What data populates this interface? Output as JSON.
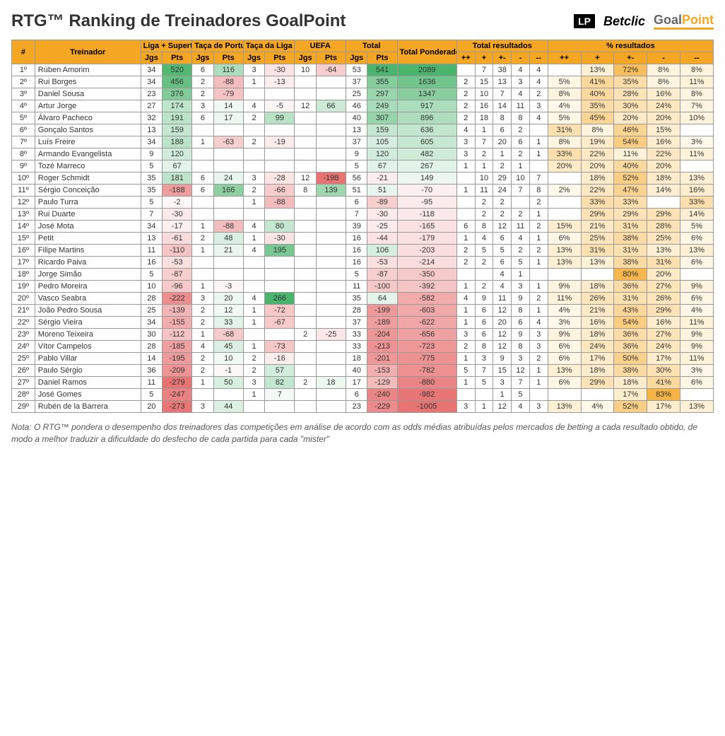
{
  "title": "RTG™ Ranking de Treinadores GoalPoint",
  "logos": {
    "lp": "LP",
    "betclic": "Betclic",
    "goal": "Goal",
    "point": "Point"
  },
  "headers": {
    "rank": "#",
    "coach": "Treinador",
    "liga": "Liga + Supertaça",
    "taca_p": "Taça de Portugal",
    "taca_l": "Taça da Liga",
    "uefa": "UEFA",
    "total": "Total",
    "rtg": "Total Ponderado RTG",
    "total_res": "Total resultados",
    "pct_res": "% resultados",
    "jgs": "Jgs",
    "pts": "Pts",
    "res_labels": [
      "++",
      "+",
      "+-",
      "-",
      "--"
    ]
  },
  "colors": {
    "header_bg": "#f5a623",
    "green_scale": {
      "min": "#f8fcfa",
      "mid": "#d4eee0",
      "high": "#8dd3a8",
      "max": "#4bb56d"
    },
    "red_scale": {
      "min": "#fef8f8",
      "mid": "#f8d6d6",
      "high": "#f0a8a8",
      "max": "#e87373"
    },
    "orange_scale": {
      "min": "#fffbf0",
      "mid": "#fdecc2",
      "high": "#fcdc8a",
      "max": "#f5b942"
    }
  },
  "pts_range": {
    "max": 541,
    "min": -279,
    "rtg_max": 2089,
    "rtg_min": -1005
  },
  "rows": [
    {
      "rank": "1º",
      "name": "Rúben Amorim",
      "liga_j": 34,
      "liga_p": 520,
      "tp_j": 6,
      "tp_p": 116,
      "tl_j": 3,
      "tl_p": -30,
      "uefa_j": 10,
      "uefa_p": -64,
      "tot_j": 53,
      "tot_p": 541,
      "rtg": 2089,
      "r": [
        "",
        7,
        38,
        4,
        4
      ],
      "pct": [
        "",
        "13%",
        "72%",
        "8%",
        "8%"
      ]
    },
    {
      "rank": "2º",
      "name": "Rui Borges",
      "liga_j": 34,
      "liga_p": 456,
      "tp_j": 2,
      "tp_p": -88,
      "tl_j": 1,
      "tl_p": -13,
      "uefa_j": "",
      "uefa_p": "",
      "tot_j": 37,
      "tot_p": 355,
      "rtg": 1636,
      "r": [
        2,
        15,
        13,
        3,
        4
      ],
      "pct": [
        "5%",
        "41%",
        "35%",
        "8%",
        "11%"
      ]
    },
    {
      "rank": "3º",
      "name": "Daniel Sousa",
      "liga_j": 23,
      "liga_p": 376,
      "tp_j": 2,
      "tp_p": -79,
      "tl_j": "",
      "tl_p": "",
      "uefa_j": "",
      "uefa_p": "",
      "tot_j": 25,
      "tot_p": 297,
      "rtg": 1347,
      "r": [
        2,
        10,
        7,
        4,
        2
      ],
      "pct": [
        "8%",
        "40%",
        "28%",
        "16%",
        "8%"
      ]
    },
    {
      "rank": "4º",
      "name": "Artur Jorge",
      "liga_j": 27,
      "liga_p": 174,
      "tp_j": 3,
      "tp_p": 14,
      "tl_j": 4,
      "tl_p": -5,
      "uefa_j": 12,
      "uefa_p": 66,
      "tot_j": 46,
      "tot_p": 249,
      "rtg": 917,
      "r": [
        2,
        16,
        14,
        11,
        3
      ],
      "pct": [
        "4%",
        "35%",
        "30%",
        "24%",
        "7%"
      ]
    },
    {
      "rank": "5º",
      "name": "Álvaro Pacheco",
      "liga_j": 32,
      "liga_p": 191,
      "tp_j": 6,
      "tp_p": 17,
      "tl_j": 2,
      "tl_p": 99,
      "uefa_j": "",
      "uefa_p": "",
      "tot_j": 40,
      "tot_p": 307,
      "rtg": 896,
      "r": [
        2,
        18,
        8,
        8,
        4
      ],
      "pct": [
        "5%",
        "45%",
        "20%",
        "20%",
        "10%"
      ]
    },
    {
      "rank": "6º",
      "name": "Gonçalo Santos",
      "liga_j": 13,
      "liga_p": 159,
      "tp_j": "",
      "tp_p": "",
      "tl_j": "",
      "tl_p": "",
      "uefa_j": "",
      "uefa_p": "",
      "tot_j": 13,
      "tot_p": 159,
      "rtg": 636,
      "r": [
        4,
        1,
        6,
        2,
        ""
      ],
      "pct": [
        "31%",
        "8%",
        "46%",
        "15%",
        ""
      ]
    },
    {
      "rank": "7º",
      "name": "Luís Freire",
      "liga_j": 34,
      "liga_p": 188,
      "tp_j": 1,
      "tp_p": -63,
      "tl_j": 2,
      "tl_p": -19,
      "uefa_j": "",
      "uefa_p": "",
      "tot_j": 37,
      "tot_p": 105,
      "rtg": 605,
      "r": [
        3,
        7,
        20,
        6,
        1
      ],
      "pct": [
        "8%",
        "19%",
        "54%",
        "16%",
        "3%"
      ]
    },
    {
      "rank": "8º",
      "name": "Armando Evangelista",
      "liga_j": 9,
      "liga_p": 120,
      "tp_j": "",
      "tp_p": "",
      "tl_j": "",
      "tl_p": "",
      "uefa_j": "",
      "uefa_p": "",
      "tot_j": 9,
      "tot_p": 120,
      "rtg": 482,
      "r": [
        3,
        2,
        1,
        2,
        1
      ],
      "pct": [
        "33%",
        "22%",
        "11%",
        "22%",
        "11%"
      ]
    },
    {
      "rank": "9º",
      "name": "Tozé Marreco",
      "liga_j": 5,
      "liga_p": 67,
      "tp_j": "",
      "tp_p": "",
      "tl_j": "",
      "tl_p": "",
      "uefa_j": "",
      "uefa_p": "",
      "tot_j": 5,
      "tot_p": 67,
      "rtg": 267,
      "r": [
        1,
        1,
        2,
        1,
        ""
      ],
      "pct": [
        "20%",
        "20%",
        "40%",
        "20%",
        ""
      ]
    },
    {
      "rank": "10º",
      "name": "Roger Schmidt",
      "liga_j": 35,
      "liga_p": 181,
      "tp_j": 6,
      "tp_p": 24,
      "tl_j": 3,
      "tl_p": -28,
      "uefa_j": 12,
      "uefa_p": -198,
      "tot_j": 56,
      "tot_p": -21,
      "rtg": 149,
      "r": [
        "",
        10,
        29,
        10,
        7
      ],
      "pct": [
        "",
        "18%",
        "52%",
        "18%",
        "13%"
      ]
    },
    {
      "rank": "11º",
      "name": "Sérgio Conceição",
      "liga_j": 35,
      "liga_p": -188,
      "tp_j": 6,
      "tp_p": 166,
      "tl_j": 2,
      "tl_p": -66,
      "uefa_j": 8,
      "uefa_p": 139,
      "tot_j": 51,
      "tot_p": 51,
      "rtg": -70,
      "r": [
        1,
        11,
        24,
        7,
        8
      ],
      "pct": [
        "2%",
        "22%",
        "47%",
        "14%",
        "16%"
      ]
    },
    {
      "rank": "12º",
      "name": "Paulo Turra",
      "liga_j": 5,
      "liga_p": -2,
      "tp_j": "",
      "tp_p": "",
      "tl_j": 1,
      "tl_p": -88,
      "uefa_j": "",
      "uefa_p": "",
      "tot_j": 6,
      "tot_p": -89,
      "rtg": -95,
      "r": [
        "",
        2,
        2,
        "",
        2
      ],
      "pct": [
        "",
        "33%",
        "33%",
        "",
        "33%"
      ]
    },
    {
      "rank": "13º",
      "name": "Rui Duarte",
      "liga_j": 7,
      "liga_p": -30,
      "tp_j": "",
      "tp_p": "",
      "tl_j": "",
      "tl_p": "",
      "uefa_j": "",
      "uefa_p": "",
      "tot_j": 7,
      "tot_p": -30,
      "rtg": -118,
      "r": [
        "",
        2,
        2,
        2,
        1
      ],
      "pct": [
        "",
        "29%",
        "29%",
        "29%",
        "14%"
      ]
    },
    {
      "rank": "14º",
      "name": "José Mota",
      "liga_j": 34,
      "liga_p": -17,
      "tp_j": 1,
      "tp_p": -88,
      "tl_j": 4,
      "tl_p": 80,
      "uefa_j": "",
      "uefa_p": "",
      "tot_j": 39,
      "tot_p": -25,
      "rtg": -165,
      "r": [
        6,
        8,
        12,
        11,
        2
      ],
      "pct": [
        "15%",
        "21%",
        "31%",
        "28%",
        "5%"
      ]
    },
    {
      "rank": "15º",
      "name": "Petit",
      "liga_j": 13,
      "liga_p": -61,
      "tp_j": 2,
      "tp_p": 48,
      "tl_j": 1,
      "tl_p": -30,
      "uefa_j": "",
      "uefa_p": "",
      "tot_j": 16,
      "tot_p": -44,
      "rtg": -179,
      "r": [
        1,
        4,
        6,
        4,
        1
      ],
      "pct": [
        "6%",
        "25%",
        "38%",
        "25%",
        "6%"
      ]
    },
    {
      "rank": "16º",
      "name": "Filipe Martins",
      "liga_j": 11,
      "liga_p": -110,
      "tp_j": 1,
      "tp_p": 21,
      "tl_j": 4,
      "tl_p": 195,
      "uefa_j": "",
      "uefa_p": "",
      "tot_j": 16,
      "tot_p": 106,
      "rtg": -203,
      "r": [
        2,
        5,
        5,
        2,
        2
      ],
      "pct": [
        "13%",
        "31%",
        "31%",
        "13%",
        "13%"
      ]
    },
    {
      "rank": "17º",
      "name": "Ricardo Paiva",
      "liga_j": 16,
      "liga_p": -53,
      "tp_j": "",
      "tp_p": "",
      "tl_j": "",
      "tl_p": "",
      "uefa_j": "",
      "uefa_p": "",
      "tot_j": 16,
      "tot_p": -53,
      "rtg": -214,
      "r": [
        2,
        2,
        6,
        5,
        1
      ],
      "pct": [
        "13%",
        "13%",
        "38%",
        "31%",
        "6%"
      ]
    },
    {
      "rank": "18º",
      "name": "Jorge Simão",
      "liga_j": 5,
      "liga_p": -87,
      "tp_j": "",
      "tp_p": "",
      "tl_j": "",
      "tl_p": "",
      "uefa_j": "",
      "uefa_p": "",
      "tot_j": 5,
      "tot_p": -87,
      "rtg": -350,
      "r": [
        "",
        "",
        4,
        1,
        ""
      ],
      "pct": [
        "",
        "",
        "80%",
        "20%",
        ""
      ]
    },
    {
      "rank": "19º",
      "name": "Pedro Moreira",
      "liga_j": 10,
      "liga_p": -96,
      "tp_j": 1,
      "tp_p": -3,
      "tl_j": "",
      "tl_p": "",
      "uefa_j": "",
      "uefa_p": "",
      "tot_j": 11,
      "tot_p": -100,
      "rtg": -392,
      "r": [
        1,
        2,
        4,
        3,
        1
      ],
      "pct": [
        "9%",
        "18%",
        "36%",
        "27%",
        "9%"
      ]
    },
    {
      "rank": "20º",
      "name": "Vasco Seabra",
      "liga_j": 28,
      "liga_p": -222,
      "tp_j": 3,
      "tp_p": 20,
      "tl_j": 4,
      "tl_p": 266,
      "uefa_j": "",
      "uefa_p": "",
      "tot_j": 35,
      "tot_p": 64,
      "rtg": -582,
      "r": [
        4,
        9,
        11,
        9,
        2
      ],
      "pct": [
        "11%",
        "26%",
        "31%",
        "26%",
        "6%"
      ]
    },
    {
      "rank": "21º",
      "name": "João Pedro Sousa",
      "liga_j": 25,
      "liga_p": -139,
      "tp_j": 2,
      "tp_p": 12,
      "tl_j": 1,
      "tl_p": -72,
      "uefa_j": "",
      "uefa_p": "",
      "tot_j": 28,
      "tot_p": -199,
      "rtg": -603,
      "r": [
        1,
        6,
        12,
        8,
        1
      ],
      "pct": [
        "4%",
        "21%",
        "43%",
        "29%",
        "4%"
      ]
    },
    {
      "rank": "22º",
      "name": "Sérgio Vieira",
      "liga_j": 34,
      "liga_p": -155,
      "tp_j": 2,
      "tp_p": 33,
      "tl_j": 1,
      "tl_p": -67,
      "uefa_j": "",
      "uefa_p": "",
      "tot_j": 37,
      "tot_p": -189,
      "rtg": -622,
      "r": [
        1,
        6,
        20,
        6,
        4
      ],
      "pct": [
        "3%",
        "16%",
        "54%",
        "16%",
        "11%"
      ]
    },
    {
      "rank": "23º",
      "name": "Moreno Teixeira",
      "liga_j": 30,
      "liga_p": -112,
      "tp_j": 1,
      "tp_p": -68,
      "tl_j": "",
      "tl_p": "",
      "uefa_j": 2,
      "uefa_p": -25,
      "tot_j": 33,
      "tot_p": -204,
      "rtg": -656,
      "r": [
        3,
        6,
        12,
        9,
        3
      ],
      "pct": [
        "9%",
        "18%",
        "36%",
        "27%",
        "9%"
      ]
    },
    {
      "rank": "24º",
      "name": "Vítor Campelos",
      "liga_j": 28,
      "liga_p": -185,
      "tp_j": 4,
      "tp_p": 45,
      "tl_j": 1,
      "tl_p": -73,
      "uefa_j": "",
      "uefa_p": "",
      "tot_j": 33,
      "tot_p": -213,
      "rtg": -723,
      "r": [
        2,
        8,
        12,
        8,
        3
      ],
      "pct": [
        "6%",
        "24%",
        "36%",
        "24%",
        "9%"
      ]
    },
    {
      "rank": "25º",
      "name": "Pablo Villar",
      "liga_j": 14,
      "liga_p": -195,
      "tp_j": 2,
      "tp_p": 10,
      "tl_j": 2,
      "tl_p": -16,
      "uefa_j": "",
      "uefa_p": "",
      "tot_j": 18,
      "tot_p": -201,
      "rtg": -775,
      "r": [
        1,
        3,
        9,
        3,
        2
      ],
      "pct": [
        "6%",
        "17%",
        "50%",
        "17%",
        "11%"
      ]
    },
    {
      "rank": "26º",
      "name": "Paulo Sérgio",
      "liga_j": 36,
      "liga_p": -209,
      "tp_j": 2,
      "tp_p": -1,
      "tl_j": 2,
      "tl_p": 57,
      "uefa_j": "",
      "uefa_p": "",
      "tot_j": 40,
      "tot_p": -153,
      "rtg": -782,
      "r": [
        5,
        7,
        15,
        12,
        1
      ],
      "pct": [
        "13%",
        "18%",
        "38%",
        "30%",
        "3%"
      ]
    },
    {
      "rank": "27º",
      "name": "Daniel Ramos",
      "liga_j": 11,
      "liga_p": -279,
      "tp_j": 1,
      "tp_p": 50,
      "tl_j": 3,
      "tl_p": 82,
      "uefa_j": 2,
      "uefa_p": 18,
      "tot_j": 17,
      "tot_p": -129,
      "rtg": -880,
      "r": [
        1,
        5,
        3,
        7,
        1
      ],
      "pct": [
        "6%",
        "29%",
        "18%",
        "41%",
        "6%"
      ]
    },
    {
      "rank": "28º",
      "name": "José Gomes",
      "liga_j": 5,
      "liga_p": -247,
      "tp_j": "",
      "tp_p": "",
      "tl_j": 1,
      "tl_p": 7,
      "uefa_j": "",
      "uefa_p": "",
      "tot_j": 6,
      "tot_p": -240,
      "rtg": -982,
      "r": [
        "",
        "",
        1,
        5,
        ""
      ],
      "pct": [
        "",
        "",
        "17%",
        "83%",
        ""
      ]
    },
    {
      "rank": "29º",
      "name": "Rubén de la Barrera",
      "liga_j": 20,
      "liga_p": -273,
      "tp_j": 3,
      "tp_p": 44,
      "tl_j": "",
      "tl_p": "",
      "uefa_j": "",
      "uefa_p": "",
      "tot_j": 23,
      "tot_p": -229,
      "rtg": -1005,
      "r": [
        3,
        1,
        12,
        4,
        3
      ],
      "pct": [
        "13%",
        "4%",
        "52%",
        "17%",
        "13%"
      ]
    }
  ],
  "footnote": "Nota: O RTG™ pondera o desempenho dos treinadores das competições em análise de acordo com as odds médias atribuídas pelos mercados de betting a cada resultado obtido, de modo a melhor traduzir a dificuldade do desfecho de cada partida para cada \"mister\""
}
